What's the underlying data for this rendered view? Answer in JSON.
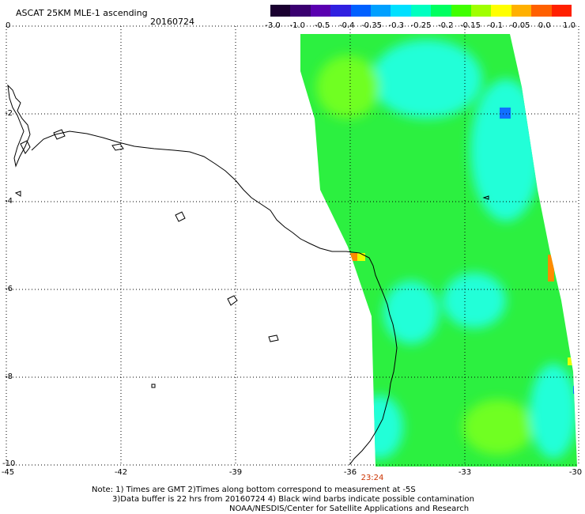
{
  "header": {
    "title": "ASCAT 25KM MLE-1 ascending",
    "date": "20160724"
  },
  "colorbar": {
    "labels": [
      "-3.0",
      "-1.0",
      "-0.5",
      "-0.4",
      "-0.35",
      "-0.3",
      "-0.25",
      "-0.2",
      "-0.15",
      "-0.1",
      "-0.05",
      "0.0",
      "1.0"
    ],
    "colors": [
      "#1a0030",
      "#3a0070",
      "#5a00b0",
      "#3020e0",
      "#0060ff",
      "#00a0ff",
      "#00e0ff",
      "#00ffc0",
      "#00ff60",
      "#40ff00",
      "#a0ff00",
      "#ffff00",
      "#ffb000",
      "#ff6000",
      "#ff2000"
    ]
  },
  "axes": {
    "y_labels": [
      "0",
      "-2",
      "-4",
      "-6",
      "-8",
      "-10"
    ],
    "x_labels": [
      "-45",
      "-42",
      "-39",
      "-36",
      "-33",
      "-30"
    ]
  },
  "map": {
    "swath_colors": {
      "green": "#2cf040",
      "cyan": "#20ffd8",
      "lime": "#70ff20",
      "blue": "#1070ff",
      "orange": "#ff8a00",
      "yellow": "#e8ff00"
    },
    "coast_color": "#000000",
    "grid_style": "dotted"
  },
  "time_label": "23:24",
  "notes": {
    "line1": "Note: 1) Times are GMT 2)Times along bottom correspond to measurement at -5S",
    "line2": "3)Data buffer is 22 hrs from 20160724 4) Black wind barbs indicate possible contamination",
    "line3": "NOAA/NESDIS/Center for Satellite Applications and Research"
  }
}
